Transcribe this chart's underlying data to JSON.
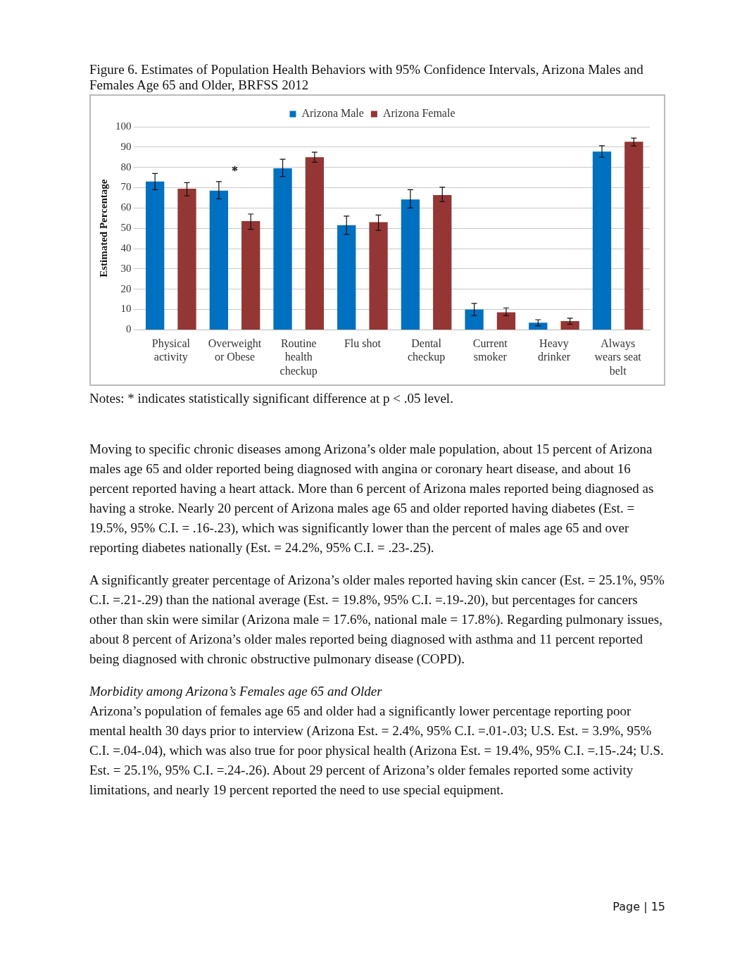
{
  "chart_data": {
    "type": "bar",
    "title": "Figure 6. Estimates of Population Health Behaviors with 95% Confidence Intervals, Arizona Males and Females Age 65 and Older, BRFSS 2012",
    "ylabel": "Estimated Percentage",
    "categories": [
      "Physical activity",
      "Overweight or Obese",
      "Routine health checkup",
      "Flu shot",
      "Dental checkup",
      "Current smoker",
      "Heavy drinker",
      "Always wears seat belt"
    ],
    "series": [
      {
        "name": "Arizona Male",
        "color": "#0070c0",
        "values": [
          73,
          68.5,
          79.5,
          51.5,
          64.2,
          10,
          3.5,
          87.8
        ],
        "errors": [
          [
            69,
            77
          ],
          [
            64.5,
            73
          ],
          [
            75.5,
            84
          ],
          [
            47,
            56
          ],
          [
            60,
            69
          ],
          [
            7,
            13
          ],
          [
            2,
            5
          ],
          [
            85,
            90.7
          ]
        ]
      },
      {
        "name": "Arizona Female",
        "color": "#943634",
        "values": [
          69.5,
          53.5,
          85,
          53,
          66.4,
          8.6,
          4.3,
          92.6
        ],
        "errors": [
          [
            66,
            72.5
          ],
          [
            49.5,
            57
          ],
          [
            82.5,
            87.5
          ],
          [
            49,
            56.5
          ],
          [
            63.1,
            70.2
          ],
          [
            7,
            10.8
          ],
          [
            2.8,
            5.7
          ],
          [
            90.5,
            94.4
          ]
        ]
      }
    ],
    "ylim": [
      0,
      100
    ],
    "yticks": [
      0,
      10,
      20,
      30,
      40,
      50,
      60,
      70,
      80,
      90,
      100
    ],
    "grid": "y",
    "legend": "top",
    "annotations": [
      "*",
      "Notes: * indicates statistically significant difference at p < .05 level.",
      "Moving to specific chronic diseases among Arizona’s older male population, about 15 percent of Arizona males age 65 and older reported being diagnosed with angina or coronary heart disease, and about 16 percent reported having a heart attack. More than 6 percent of Arizona males reported being diagnosed as having a stroke. Nearly 20 percent of Arizona males age 65 and older reported having diabetes (Est. = 19.5%, 95% C.I. = .16-.23), which was significantly lower than the percent of males age 65 and over reporting diabetes nationally (Est. = 24.2%, 95% C.I. = .23-.25).",
      "A significantly greater percentage of Arizona’s older males reported having skin cancer (Est. = 25.1%, 95% C.I. =.21-.29) than the national average (Est. = 19.8%, 95% C.I. =.19-.20), but percentages for cancers other than skin were similar (Arizona male = 17.6%, national male = 17.8%). Regarding pulmonary issues, about 8 percent of Arizona’s older males reported being diagnosed with asthma and 11 percent reported being diagnosed with chronic obstructive pulmonary disease (COPD).",
      "Morbidity among Arizona’s Females age 65 and Older",
      "Arizona’s population of females age 65 and older had a significantly lower percentage reporting poor mental health 30 days prior to interview (Arizona Est. = 2.4%, 95% C.I. =.01-.03; U.S. Est. = 3.9%, 95% C.I. =.04-.04), which was also true for poor physical health (Arizona Est. = 19.4%, 95% C.I. =.15-.24;  U.S. Est. = 25.1%, 95% C.I. =.24-.26). About 29 percent of Arizona’s older females reported some activity limitations, and nearly 19 percent reported the need to use special equipment.",
      "Page | 15"
    ]
  }
}
